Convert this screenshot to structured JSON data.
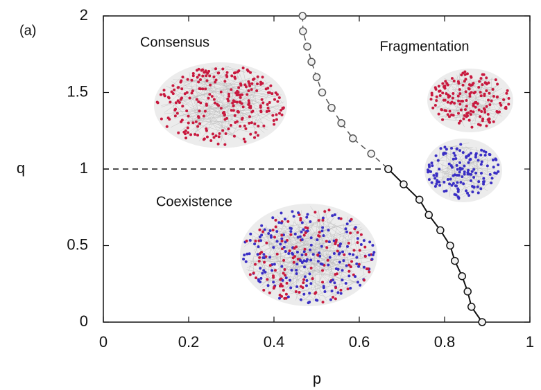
{
  "chart_data": {
    "type": "line",
    "annotations": [
      "(a)",
      "Consensus",
      "Fragmentation",
      "Coexistence"
    ],
    "x_label": "p",
    "y_label": "q",
    "xlim": [
      0,
      1
    ],
    "ylim": [
      0,
      2
    ],
    "xticks": [
      0,
      0.2,
      0.4,
      0.6,
      0.8,
      1
    ],
    "yticks": [
      0,
      0.5,
      1,
      1.5,
      2
    ],
    "series": [
      {
        "color": "#111111",
        "style": "dashed",
        "marker": false,
        "x": [
          0,
          0.668
        ],
        "values": [
          1,
          1
        ]
      },
      {
        "color": "#555555",
        "style": "dashed",
        "marker": true,
        "x": [
          0.467,
          0.468,
          0.478,
          0.488,
          0.5,
          0.513,
          0.535,
          0.558,
          0.585,
          0.628,
          0.668
        ],
        "values": [
          2,
          1.9,
          1.8,
          1.7,
          1.6,
          1.5,
          1.4,
          1.3,
          1.2,
          1.1,
          1
        ]
      },
      {
        "color": "#111111",
        "style": "solid",
        "marker": true,
        "x": [
          0.668,
          0.704,
          0.741,
          0.763,
          0.79,
          0.813,
          0.824,
          0.841,
          0.854,
          0.863,
          0.888
        ],
        "values": [
          1,
          0.9,
          0.8,
          0.7,
          0.6,
          0.5,
          0.4,
          0.3,
          0.2,
          0.1,
          0
        ]
      }
    ]
  }
}
